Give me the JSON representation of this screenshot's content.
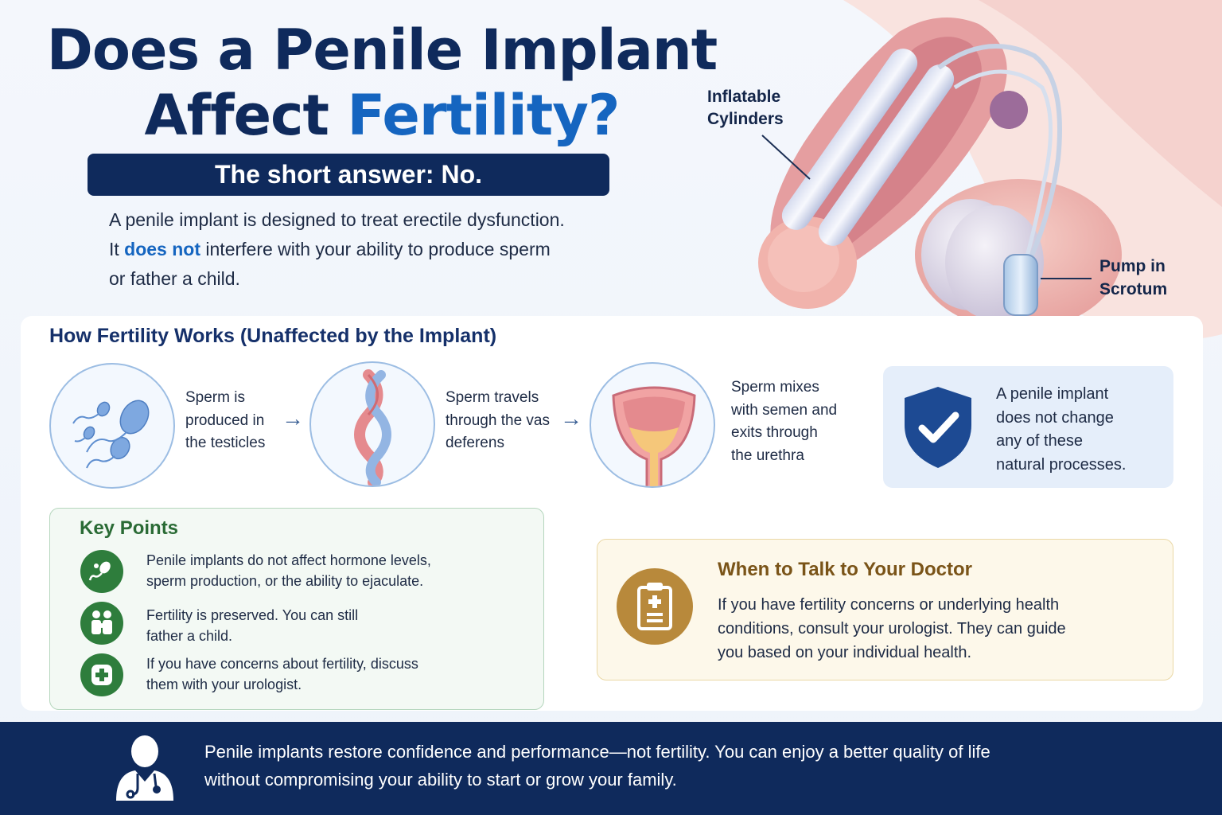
{
  "title": {
    "line1": "Does a Penile Implant",
    "line2_plain": "Affect ",
    "line2_accent": "Fertility?"
  },
  "short_answer": "The short answer: No.",
  "intro": {
    "line1": "A penile implant is designed to treat erectile dysfunction.",
    "line2_pre": "It ",
    "line2_hl": "does not",
    "line2_post": " interfere with your ability to produce sperm",
    "line3": "or father a child."
  },
  "illustration": {
    "label_cylinders": [
      "Inflatable",
      "Cylinders"
    ],
    "label_pump": [
      "Pump in",
      "Scrotum"
    ]
  },
  "fertility": {
    "title": "How Fertility Works (Unaffected by the Implant)",
    "steps": [
      {
        "icon": "sperm-icon",
        "lines": [
          "Sperm is",
          "produced in",
          "the testicles"
        ]
      },
      {
        "icon": "vas-deferens-icon",
        "lines": [
          "Sperm travels",
          "through the vas",
          "deferens"
        ]
      },
      {
        "icon": "urethra-icon",
        "lines": [
          "Sperm mixes",
          "with semen and",
          "exits through",
          "the urethra"
        ]
      }
    ],
    "note": {
      "icon": "shield-check-icon",
      "lines": [
        "A penile implant",
        "does not change",
        "any of these",
        "natural processes."
      ]
    }
  },
  "key_points": {
    "title": "Key Points",
    "items": [
      {
        "icon": "sperm-icon",
        "lines": [
          "Penile implants do not affect hormone levels,",
          "sperm production, or the ability to ejaculate."
        ]
      },
      {
        "icon": "family-icon",
        "lines": [
          "Fertility is preserved. You can still",
          "father a child."
        ]
      },
      {
        "icon": "medical-cross-icon",
        "lines": [
          "If you have concerns about fertility, discuss",
          "them with your urologist."
        ]
      }
    ]
  },
  "doctor": {
    "icon": "clipboard-icon",
    "title": "When to Talk to Your Doctor",
    "lines": [
      "If you have fertility concerns or underlying health",
      "conditions, consult your urologist. They can guide",
      "you based on your individual health."
    ]
  },
  "footer": {
    "icon": "doctor-icon",
    "lines": [
      "Penile implants restore confidence and performance—not fertility. You can enjoy a better quality of life",
      "without compromising your ability to start or grow your family."
    ]
  },
  "colors": {
    "navy": "#0f2a5c",
    "accent_blue": "#1565c0",
    "green": "#2e7d3c",
    "gold": "#b8893b"
  }
}
